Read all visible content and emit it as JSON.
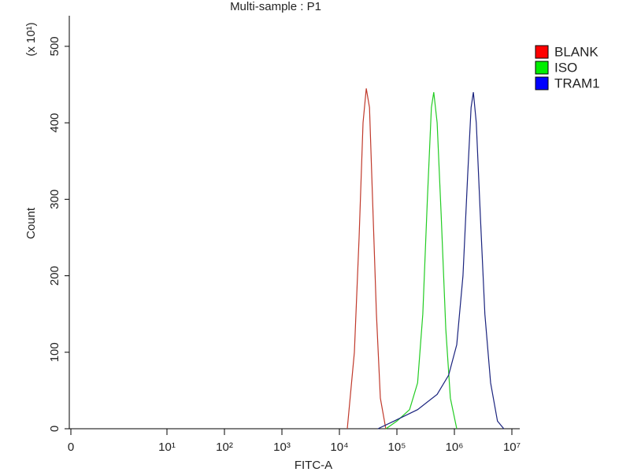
{
  "chart_data": {
    "type": "line",
    "title": "Multi-sample : P1",
    "xlabel": "FITC-A",
    "ylabel": "Count",
    "y_multiplier": "(x 10¹)",
    "xscale": "biexponential",
    "xlim": [
      0,
      14000000
    ],
    "xticks": [
      0,
      {
        "value": 10,
        "label": "10¹"
      },
      {
        "value": 100,
        "label": "10²"
      },
      {
        "value": 1000,
        "label": "10³"
      },
      {
        "value": 10000,
        "label": "10⁴"
      },
      {
        "value": 100000,
        "label": "10⁵"
      },
      {
        "value": 1000000,
        "label": "10⁶"
      },
      {
        "value": 10000000,
        "label": "10⁷"
      }
    ],
    "ylim": [
      0,
      540
    ],
    "yticks": [
      0,
      100,
      200,
      300,
      400,
      500
    ],
    "legend": "right",
    "series": [
      {
        "name": "BLANK",
        "color": "#c0392b",
        "legend_color": "#ff0000",
        "x": [
          13700,
          18200,
          22000,
          25800,
          29300,
          33400,
          37700,
          44000,
          51500,
          64000
        ],
        "values": [
          0,
          100,
          250,
          400,
          445,
          420,
          300,
          150,
          40,
          0
        ]
      },
      {
        "name": "ISO",
        "color": "#22cc22",
        "legend_color": "#00ee00",
        "x": [
          64600,
          100000,
          166000,
          229000,
          282000,
          339000,
          398000,
          437000,
          501000,
          589000,
          708000,
          851000,
          1100000
        ],
        "values": [
          0,
          10,
          25,
          60,
          150,
          300,
          420,
          440,
          400,
          280,
          130,
          40,
          0
        ]
      },
      {
        "name": "TRAM1",
        "color": "#1a237e",
        "legend_color": "#0000ff",
        "x": [
          46800,
          89100,
          229000,
          501000,
          794000,
          1100000,
          1410000,
          1700000,
          1950000,
          2140000,
          2400000,
          2820000,
          3390000,
          4270000,
          5620000,
          7240000
        ],
        "values": [
          0,
          10,
          25,
          45,
          70,
          110,
          200,
          330,
          420,
          440,
          400,
          280,
          150,
          60,
          10,
          0
        ]
      }
    ]
  }
}
